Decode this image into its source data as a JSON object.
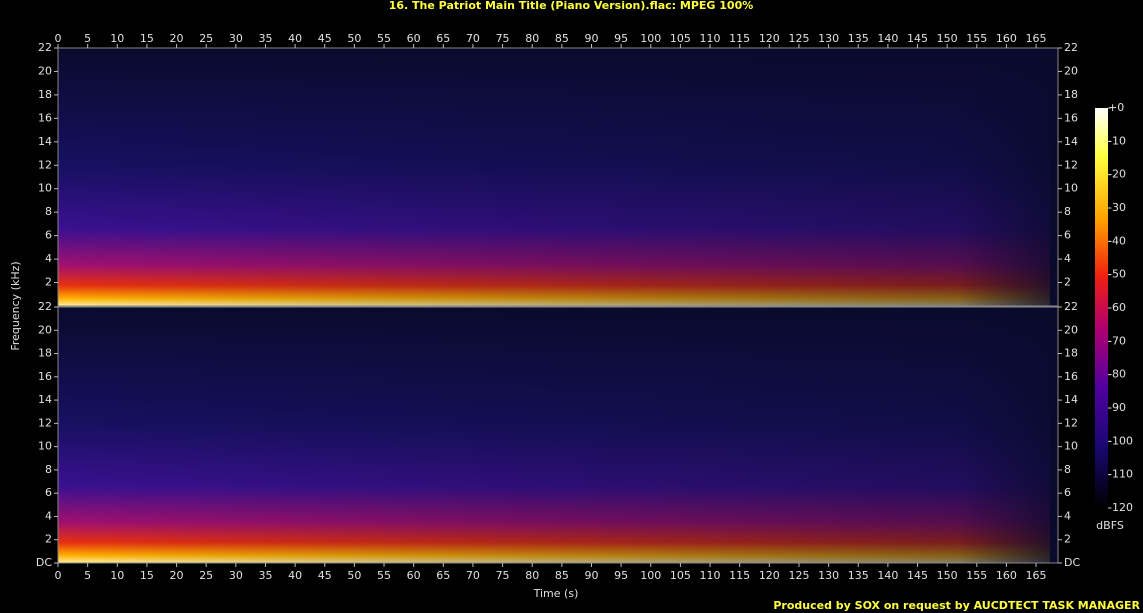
{
  "chart_data": {
    "type": "spectrogram",
    "title": "16. The Patriot Main Title (Piano Version).flac: MPEG 100%",
    "x_label": "Time (s)",
    "y_label": "Frequency (kHz)",
    "xlim": [
      0,
      168.7
    ],
    "xticks": [
      0,
      5,
      10,
      15,
      20,
      25,
      30,
      35,
      40,
      45,
      50,
      55,
      60,
      65,
      70,
      75,
      80,
      85,
      90,
      95,
      100,
      105,
      110,
      115,
      120,
      125,
      130,
      135,
      140,
      145,
      150,
      155,
      160,
      165
    ],
    "panels": [
      {
        "ylim": [
          0,
          22
        ],
        "yticks": [
          2,
          4,
          6,
          8,
          10,
          12,
          14,
          16,
          18,
          20,
          22
        ]
      },
      {
        "ylim": [
          0,
          22
        ],
        "yticks": [
          {
            "value": 0,
            "label": "DC"
          },
          2,
          4,
          6,
          8,
          10,
          12,
          14,
          16,
          18,
          20,
          22
        ]
      }
    ],
    "colorbar": {
      "label": "dBFS",
      "lim": [
        -120,
        0
      ],
      "ticks": [
        {
          "value": 0,
          "label": "+0"
        },
        -10,
        -20,
        -30,
        -40,
        -50,
        -60,
        -70,
        -80,
        -90,
        -100,
        -110,
        -120
      ]
    },
    "footer": "Produced by SOX on request by AUCDTECT TASK MANAGER"
  }
}
